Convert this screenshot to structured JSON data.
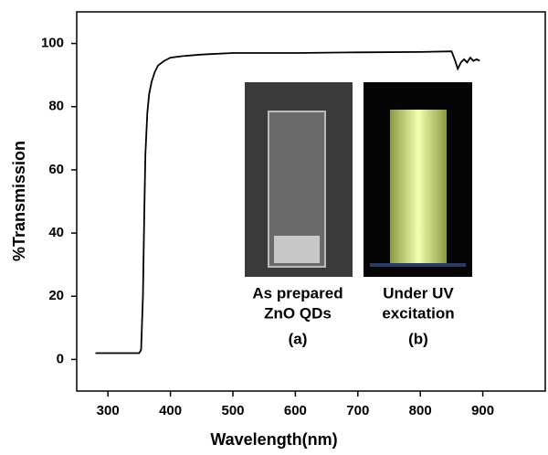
{
  "chart_data": {
    "type": "line",
    "x_label": "Wavelength(nm)",
    "y_label": "%Transmission",
    "x": [
      280,
      300,
      340,
      350,
      353,
      356,
      358,
      360,
      363,
      366,
      370,
      375,
      380,
      390,
      400,
      420,
      450,
      500,
      600,
      700,
      800,
      850,
      855,
      860,
      865,
      870,
      875,
      880,
      885,
      890,
      895
    ],
    "values": [
      2,
      2,
      2,
      2,
      3,
      20,
      45,
      65,
      78,
      84,
      88,
      91,
      93,
      94.5,
      95.5,
      96,
      96.5,
      97,
      97,
      97.2,
      97.3,
      97.5,
      95,
      92,
      94,
      95,
      94,
      95.5,
      94.5,
      95,
      94.5
    ],
    "color": "#000000",
    "xlim": [
      250,
      1000
    ],
    "xticks": [
      300,
      400,
      500,
      600,
      700,
      800,
      900
    ],
    "ylim": [
      -10,
      110
    ],
    "yticks": [
      0,
      20,
      40,
      60,
      80,
      100
    ],
    "grid": false,
    "annotations": [
      {
        "lines": [
          "As prepared",
          "ZnO QDs"
        ],
        "label": "(a)"
      },
      {
        "lines": [
          "Under UV",
          "excitation"
        ],
        "label": "(b)"
      }
    ]
  }
}
